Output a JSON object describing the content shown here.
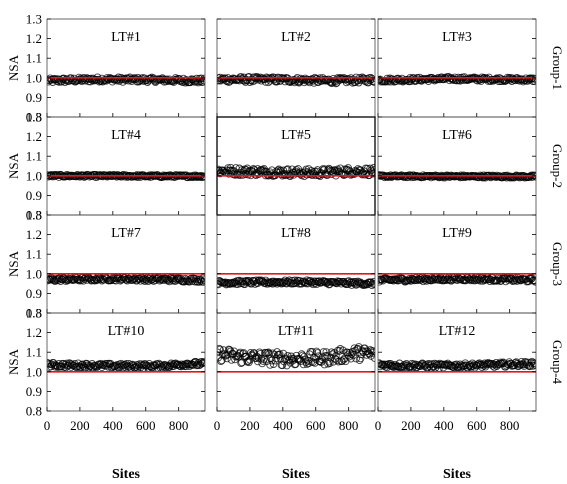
{
  "chart_data": {
    "type": "scatter",
    "ylabel": "NSA",
    "xlabel": "Sites",
    "ylim": [
      0.8,
      1.3
    ],
    "xlim": [
      0,
      960
    ],
    "yticks": [
      "0.8",
      "0.9",
      "1.0",
      "1.1",
      "1.2",
      "1.3"
    ],
    "xticks": [
      "0",
      "200",
      "400",
      "600",
      "800"
    ],
    "reference_line": {
      "y": 1.0,
      "color": "#e8141c"
    },
    "marker_color": "#000000",
    "groups": [
      "Group-1",
      "Group-2",
      "Group-3",
      "Group-4"
    ],
    "panels": [
      {
        "title": "LT#1",
        "group": "Group-1",
        "mean": 0.99,
        "spread": 0.012,
        "profile": [
          [
            0,
            0.985
          ],
          [
            300,
            0.992
          ],
          [
            600,
            0.99
          ],
          [
            960,
            0.985
          ]
        ]
      },
      {
        "title": "LT#2",
        "group": "Group-1",
        "mean": 0.99,
        "spread": 0.014,
        "profile": [
          [
            0,
            0.992
          ],
          [
            400,
            0.99
          ],
          [
            700,
            0.985
          ],
          [
            960,
            0.99
          ]
        ]
      },
      {
        "title": "LT#3",
        "group": "Group-1",
        "mean": 0.99,
        "spread": 0.01,
        "profile": [
          [
            0,
            0.988
          ],
          [
            450,
            0.995
          ],
          [
            960,
            0.99
          ]
        ]
      },
      {
        "title": "LT#4",
        "group": "Group-2",
        "mean": 1.0,
        "spread": 0.006,
        "profile": [
          [
            0,
            1.0
          ],
          [
            960,
            0.998
          ]
        ]
      },
      {
        "title": "LT#5",
        "group": "Group-2",
        "mean": 1.02,
        "spread": 0.02,
        "profile": [
          [
            0,
            1.025
          ],
          [
            300,
            1.02
          ],
          [
            600,
            1.015
          ],
          [
            850,
            1.025
          ],
          [
            960,
            1.02
          ]
        ]
      },
      {
        "title": "LT#6",
        "group": "Group-2",
        "mean": 1.0,
        "spread": 0.006,
        "profile": [
          [
            0,
            0.998
          ],
          [
            960,
            0.996
          ]
        ]
      },
      {
        "title": "LT#7",
        "group": "Group-3",
        "mean": 0.97,
        "spread": 0.01,
        "profile": [
          [
            0,
            0.97
          ],
          [
            400,
            0.975
          ],
          [
            960,
            0.968
          ]
        ]
      },
      {
        "title": "LT#8",
        "group": "Group-3",
        "mean": 0.955,
        "spread": 0.01,
        "profile": [
          [
            0,
            0.955
          ],
          [
            500,
            0.958
          ],
          [
            960,
            0.95
          ]
        ]
      },
      {
        "title": "LT#9",
        "group": "Group-3",
        "mean": 0.97,
        "spread": 0.01,
        "profile": [
          [
            0,
            0.968
          ],
          [
            500,
            0.975
          ],
          [
            960,
            0.968
          ]
        ]
      },
      {
        "title": "LT#10",
        "group": "Group-4",
        "mean": 1.035,
        "spread": 0.012,
        "profile": [
          [
            0,
            1.035
          ],
          [
            400,
            1.03
          ],
          [
            700,
            1.03
          ],
          [
            850,
            1.04
          ],
          [
            960,
            1.04
          ]
        ]
      },
      {
        "title": "LT#11",
        "group": "Group-4",
        "mean": 1.07,
        "spread": 0.035,
        "profile": [
          [
            0,
            1.09
          ],
          [
            150,
            1.075
          ],
          [
            450,
            1.065
          ],
          [
            650,
            1.07
          ],
          [
            850,
            1.095
          ],
          [
            960,
            1.09
          ]
        ]
      },
      {
        "title": "LT#12",
        "group": "Group-4",
        "mean": 1.035,
        "spread": 0.012,
        "profile": [
          [
            0,
            1.035
          ],
          [
            400,
            1.03
          ],
          [
            700,
            1.035
          ],
          [
            850,
            1.04
          ],
          [
            960,
            1.04
          ]
        ]
      }
    ]
  }
}
